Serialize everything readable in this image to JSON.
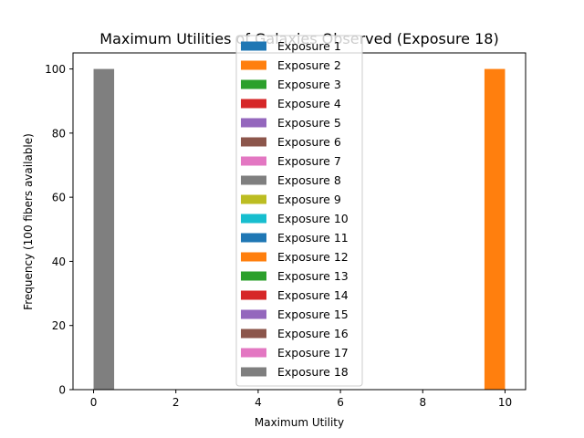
{
  "chart_data": {
    "type": "bar",
    "title": "Maximum Utilities of Galaxies Observed (Exposure 18)",
    "xlabel": "Maximum Utility",
    "ylabel": "Frequency (100 fibers available)",
    "xlim": [
      -0.5,
      10.5
    ],
    "ylim": [
      0,
      105
    ],
    "xticks": [
      0,
      2,
      4,
      6,
      8,
      10
    ],
    "yticks": [
      0,
      20,
      40,
      60,
      80,
      100
    ],
    "grid": false,
    "legend_position": "top-center",
    "bar_width": 0.5,
    "series": [
      {
        "name": "Exposure 1",
        "color": "#1f77b4",
        "bars": []
      },
      {
        "name": "Exposure 2",
        "color": "#ff7f0e",
        "bars": [
          {
            "x": 9.5,
            "value": 100
          }
        ]
      },
      {
        "name": "Exposure 3",
        "color": "#2ca02c",
        "bars": []
      },
      {
        "name": "Exposure 4",
        "color": "#d62728",
        "bars": []
      },
      {
        "name": "Exposure 5",
        "color": "#9467bd",
        "bars": []
      },
      {
        "name": "Exposure 6",
        "color": "#8c564b",
        "bars": []
      },
      {
        "name": "Exposure 7",
        "color": "#e377c2",
        "bars": []
      },
      {
        "name": "Exposure 8",
        "color": "#7f7f7f",
        "bars": []
      },
      {
        "name": "Exposure 9",
        "color": "#bcbd22",
        "bars": []
      },
      {
        "name": "Exposure 10",
        "color": "#17becf",
        "bars": []
      },
      {
        "name": "Exposure 11",
        "color": "#1f77b4",
        "bars": []
      },
      {
        "name": "Exposure 12",
        "color": "#ff7f0e",
        "bars": []
      },
      {
        "name": "Exposure 13",
        "color": "#2ca02c",
        "bars": []
      },
      {
        "name": "Exposure 14",
        "color": "#d62728",
        "bars": []
      },
      {
        "name": "Exposure 15",
        "color": "#9467bd",
        "bars": []
      },
      {
        "name": "Exposure 16",
        "color": "#8c564b",
        "bars": []
      },
      {
        "name": "Exposure 17",
        "color": "#e377c2",
        "bars": []
      },
      {
        "name": "Exposure 18",
        "color": "#7f7f7f",
        "bars": [
          {
            "x": 0,
            "value": 100
          }
        ]
      }
    ]
  }
}
